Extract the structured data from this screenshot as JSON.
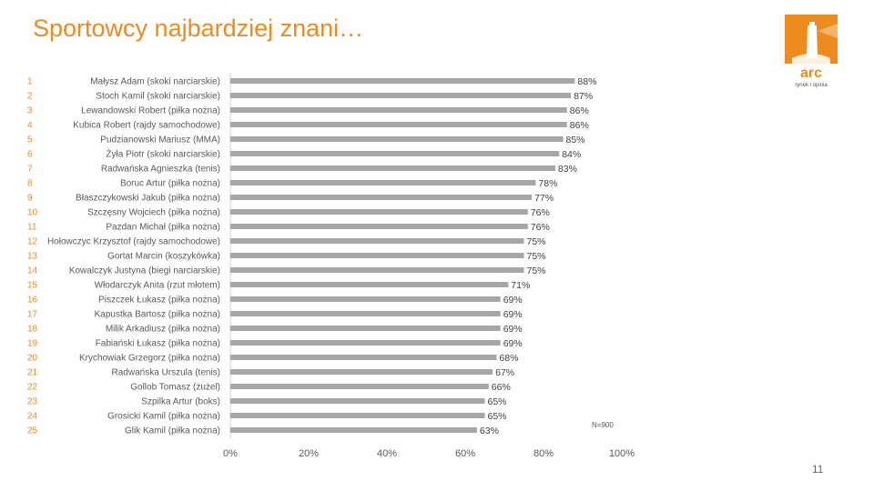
{
  "slide": {
    "title": "Sportowcy najbardziej znani…",
    "page_number": "11",
    "note": "N=900",
    "logo": {
      "brand": "arc",
      "tagline": "rynek i opinia",
      "color": "#ee8b1f"
    }
  },
  "chart_data": {
    "type": "bar",
    "orientation": "horizontal",
    "title": "",
    "xlim": [
      0,
      100
    ],
    "xticks": [
      "0%",
      "20%",
      "40%",
      "60%",
      "80%",
      "100%"
    ],
    "grid": false,
    "bar_color": "#a6a6a6",
    "rank_color": "#ee8b1f",
    "unit": "%",
    "ranks": [
      "1",
      "2",
      "3",
      "4",
      "5",
      "6",
      "7",
      "8",
      "9",
      "10",
      "11",
      "12",
      "13",
      "14",
      "15",
      "16",
      "17",
      "18",
      "19",
      "20",
      "21",
      "22",
      "23",
      "24",
      "25"
    ],
    "categories": [
      "Małysz Adam (skoki narciarskie)",
      "Stoch Kamil (skoki narciarskie)",
      "Lewandowski Robert (piłka nożna)",
      "Kubica Robert (rajdy samochodowe)",
      "Pudzianowski Mariusz (MMA)",
      "Żyła Piotr (skoki narciarskie)",
      "Radwańska Agnieszka (tenis)",
      "Boruc Artur (piłka nożna)",
      "Błaszczykowski Jakub (piłka nożna)",
      "Szczęsny Wojciech (piłka nożna)",
      "Pazdan Michał (piłka nożna)",
      "Hołowczyc Krzysztof (rajdy samochodowe)",
      "Gortat Marcin (koszykówka)",
      "Kowalczyk Justyna (biegi narciarskie)",
      "Włodarczyk Anita (rzut młotem)",
      "Piszczek Łukasz (piłka nożna)",
      "Kapustka Bartosz (piłka nożna)",
      "Milik Arkadiusz (piłka nożna)",
      "Fabiański Łukasz (piłka nożna)",
      "Krychowiak Grzegorz (piłka nożna)",
      "Radwańska Urszula (tenis)",
      "Gollob Tomasz (żużel)",
      "Szpilka Artur (boks)",
      "Grosicki Kamil (piłka nożna)",
      "Glik Kamil (piłka nożna)"
    ],
    "values": [
      88,
      87,
      86,
      86,
      85,
      84,
      83,
      78,
      77,
      76,
      76,
      75,
      75,
      75,
      71,
      69,
      69,
      69,
      69,
      68,
      67,
      66,
      65,
      65,
      63
    ]
  }
}
